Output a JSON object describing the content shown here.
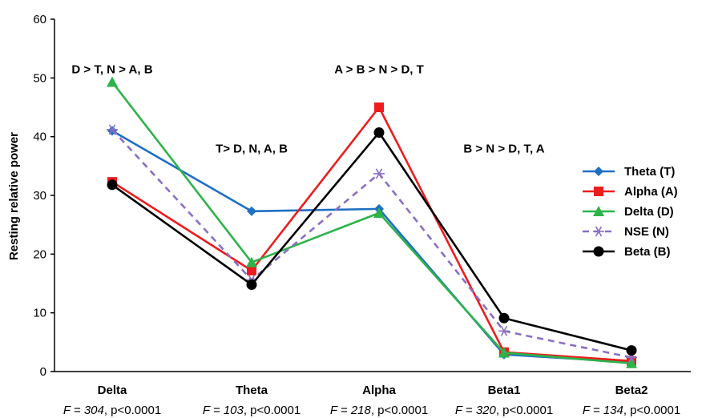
{
  "chart_data": {
    "type": "line",
    "title": "",
    "xlabel": "",
    "ylabel": "Resting relative power",
    "ylim": [
      0,
      60
    ],
    "yticks": [
      0,
      10,
      20,
      30,
      40,
      50,
      60
    ],
    "grid": false,
    "legend_position": "right",
    "categories": [
      "Delta",
      "Theta",
      "Alpha",
      "Beta1",
      "Beta2"
    ],
    "stats": [
      {
        "F": "F = 304",
        "p": ", p<0.0001"
      },
      {
        "F": "F = 103",
        "p": ", p<0.0001"
      },
      {
        "F": "F = 218",
        "p": ", p<0.0001"
      },
      {
        "F": "F = 320",
        "p": ", p<0.0001"
      },
      {
        "F": "F = 134",
        "p": ", p<0.0001"
      }
    ],
    "annotations": [
      {
        "text": "D > T, N > A, B",
        "category": 0,
        "y": 51.5
      },
      {
        "text": "T> D, N, A, B",
        "category": 1,
        "y": 38
      },
      {
        "text": "A > B > N > D, T",
        "category": 2,
        "y": 51.5
      },
      {
        "text": "B > N > D, T, A",
        "category": 3,
        "y": 38
      }
    ],
    "series": [
      {
        "name": "Theta (T)",
        "color": "#1f6fc4",
        "marker": "diamond",
        "dash": false,
        "values": [
          41,
          27.3,
          27.7,
          2.9,
          1.6
        ]
      },
      {
        "name": "Alpha (A)",
        "color": "#ee1c1c",
        "marker": "square",
        "dash": false,
        "values": [
          32.3,
          17.2,
          45,
          3.3,
          1.8
        ]
      },
      {
        "name": "Delta (D)",
        "color": "#2db34a",
        "marker": "triangle",
        "dash": false,
        "values": [
          49.3,
          18.6,
          27,
          3.2,
          1.4
        ]
      },
      {
        "name": "NSE (N)",
        "color": "#8a6fc4",
        "marker": "asterisk",
        "dash": true,
        "values": [
          41.2,
          15.6,
          33.7,
          6.9,
          2.4
        ]
      },
      {
        "name": "Beta (B)",
        "color": "#000000",
        "marker": "circle",
        "dash": false,
        "values": [
          31.8,
          14.8,
          40.7,
          9.1,
          3.6
        ]
      }
    ]
  }
}
